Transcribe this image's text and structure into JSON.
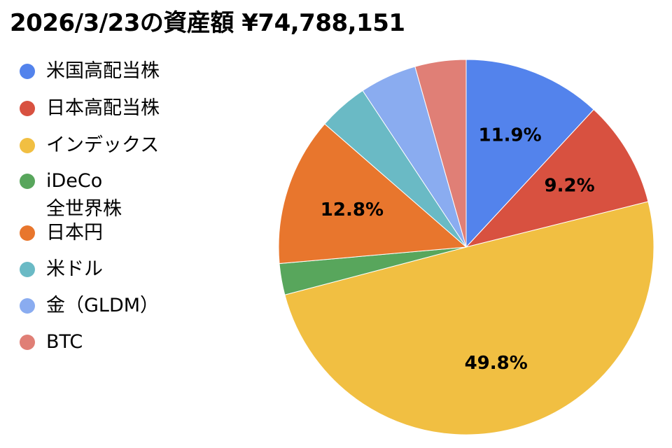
{
  "chart_data": {
    "type": "pie",
    "title": "2026/3/23の資産額 ¥74,788,151",
    "legend_position": "left",
    "start_angle": "top",
    "direction": "clockwise",
    "slices": [
      {
        "name": "米国高配当株",
        "value": 11.9,
        "color": "#5383EC",
        "label": "11.9%"
      },
      {
        "name": "日本高配当株",
        "value": 9.2,
        "color": "#D85140",
        "label": "9.2%"
      },
      {
        "name": "インデックス",
        "value": 49.8,
        "color": "#F1BF42",
        "label": "49.8%"
      },
      {
        "name": "iDeCo\n全世界株",
        "value": 2.7,
        "color": "#58A65C",
        "label": ""
      },
      {
        "name": "日本円",
        "value": 12.8,
        "color": "#E8762D",
        "label": "12.8%"
      },
      {
        "name": "米ドル",
        "value": 4.3,
        "color": "#6ABAC5",
        "label": ""
      },
      {
        "name": "金（GLDM）",
        "value": 4.9,
        "color": "#8AACF0",
        "label": ""
      },
      {
        "name": "BTC",
        "value": 4.4,
        "color": "#E07F76",
        "label": ""
      }
    ]
  }
}
